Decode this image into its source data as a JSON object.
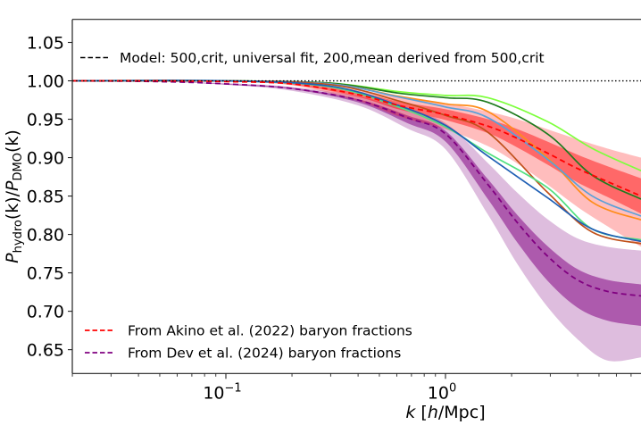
{
  "chart_data": {
    "type": "line",
    "xscale": "log",
    "xlim": [
      0.02,
      7.8
    ],
    "ylim": [
      0.619,
      1.08
    ],
    "grid": false,
    "xlabel_parts": [
      "k",
      " [",
      "h",
      "/Mpc]"
    ],
    "ylabel_parts": [
      "P",
      "hydro",
      "(k)/",
      "P",
      "DMO",
      "(k)"
    ],
    "yticks": [
      0.65,
      0.7,
      0.75,
      0.8,
      0.85,
      0.9,
      0.95,
      1.0,
      1.05
    ],
    "ytick_labels": [
      "0.65",
      "0.70",
      "0.75",
      "0.80",
      "0.85",
      "0.90",
      "0.95",
      "1.00",
      "1.05"
    ],
    "xticks": [
      {
        "value": 0.1,
        "base": "10",
        "exp": "−1"
      },
      {
        "value": 1,
        "base": "10",
        "exp": "0"
      }
    ],
    "reference_line": {
      "y": 1.0,
      "style": "dotted",
      "color": "#000000"
    },
    "legend": {
      "top": {
        "placement": "top-left",
        "label": "Model: 500,crit, universal fit, 200,mean derived from 500,crit",
        "color": "#000000",
        "style": "dashed"
      },
      "bottom": {
        "placement": "lower-left",
        "entries": [
          {
            "label": "From Akino et al. (2022) baryon fractions",
            "color": "#ff0000",
            "style": "dashed"
          },
          {
            "label": "From Dev et al. (2024) baryon fractions",
            "color": "#800080",
            "style": "dashed"
          }
        ]
      }
    },
    "bands": [
      {
        "name": "From Dev et al. (2024) baryon fractions",
        "color": "#800080",
        "k": [
          0.02,
          0.05,
          0.1,
          0.2,
          0.4,
          0.67,
          1.0,
          1.56,
          2.13,
          2.91,
          3.98,
          5.44,
          7.77
        ],
        "mean": [
          1.0,
          0.999,
          0.996,
          0.99,
          0.975,
          0.952,
          0.931,
          0.865,
          0.815,
          0.772,
          0.741,
          0.726,
          0.72
        ],
        "outer_upper": [
          1.0,
          0.999,
          0.997,
          0.992,
          0.98,
          0.962,
          0.945,
          0.893,
          0.854,
          0.82,
          0.795,
          0.784,
          0.779
        ],
        "outer_lower": [
          1.0,
          0.999,
          0.995,
          0.987,
          0.968,
          0.938,
          0.911,
          0.826,
          0.761,
          0.706,
          0.664,
          0.636,
          0.64
        ],
        "inner_upper": [
          1.0,
          0.999,
          0.996,
          0.991,
          0.976,
          0.955,
          0.935,
          0.872,
          0.825,
          0.785,
          0.755,
          0.741,
          0.735
        ],
        "inner_lower": [
          1.0,
          0.999,
          0.995,
          0.989,
          0.972,
          0.945,
          0.921,
          0.846,
          0.789,
          0.74,
          0.705,
          0.688,
          0.681
        ]
      },
      {
        "name": "From Akino et al. (2022) baryon fractions",
        "color": "#ff0000",
        "k": [
          0.02,
          0.05,
          0.1,
          0.2,
          0.4,
          0.61,
          1.0,
          1.56,
          2.13,
          2.91,
          3.98,
          5.44,
          7.77
        ],
        "mean": [
          1.0,
          1.0,
          0.999,
          0.996,
          0.982,
          0.968,
          0.956,
          0.941,
          0.925,
          0.906,
          0.886,
          0.869,
          0.85
        ],
        "outer_upper": [
          1.0,
          1.0,
          0.999,
          0.997,
          0.988,
          0.979,
          0.971,
          0.96,
          0.95,
          0.937,
          0.924,
          0.912,
          0.9
        ],
        "outer_lower": [
          1.0,
          1.0,
          0.999,
          0.994,
          0.974,
          0.954,
          0.937,
          0.915,
          0.892,
          0.865,
          0.836,
          0.811,
          0.784
        ],
        "inner_upper": [
          1.0,
          1.0,
          0.999,
          0.997,
          0.985,
          0.973,
          0.963,
          0.95,
          0.937,
          0.921,
          0.904,
          0.889,
          0.873
        ],
        "inner_lower": [
          1.0,
          1.0,
          0.999,
          0.995,
          0.979,
          0.963,
          0.949,
          0.932,
          0.913,
          0.891,
          0.868,
          0.849,
          0.827
        ]
      }
    ],
    "simulation_k": [
      0.02,
      0.1,
      0.3,
      0.61,
      1.0,
      1.56,
      2.91,
      4.66,
      7.77
    ],
    "simulations": [
      {
        "color": "#7dff3c",
        "values": [
          1.0,
          1.0,
          0.997,
          0.986,
          0.981,
          0.978,
          0.947,
          0.912,
          0.883
        ]
      },
      {
        "color": "#1e7b1e",
        "values": [
          1.0,
          1.0,
          0.997,
          0.984,
          0.978,
          0.972,
          0.931,
          0.877,
          0.846
        ]
      },
      {
        "color": "#ff8c1a",
        "values": [
          1.0,
          1.0,
          0.996,
          0.98,
          0.97,
          0.96,
          0.9,
          0.842,
          0.819
        ]
      },
      {
        "color": "#5aa0d8",
        "values": [
          1.0,
          1.0,
          0.996,
          0.979,
          0.966,
          0.952,
          0.898,
          0.85,
          0.824
        ]
      },
      {
        "color": "#c0501a",
        "values": [
          1.0,
          1.0,
          0.995,
          0.974,
          0.955,
          0.933,
          0.855,
          0.803,
          0.788
        ]
      },
      {
        "color": "#50e080",
        "values": [
          1.0,
          1.0,
          0.992,
          0.966,
          0.94,
          0.906,
          0.861,
          0.807,
          0.793
        ]
      },
      {
        "color": "#1f5fb4",
        "values": [
          1.0,
          1.0,
          0.993,
          0.968,
          0.942,
          0.902,
          0.848,
          0.807,
          0.791
        ]
      }
    ]
  }
}
